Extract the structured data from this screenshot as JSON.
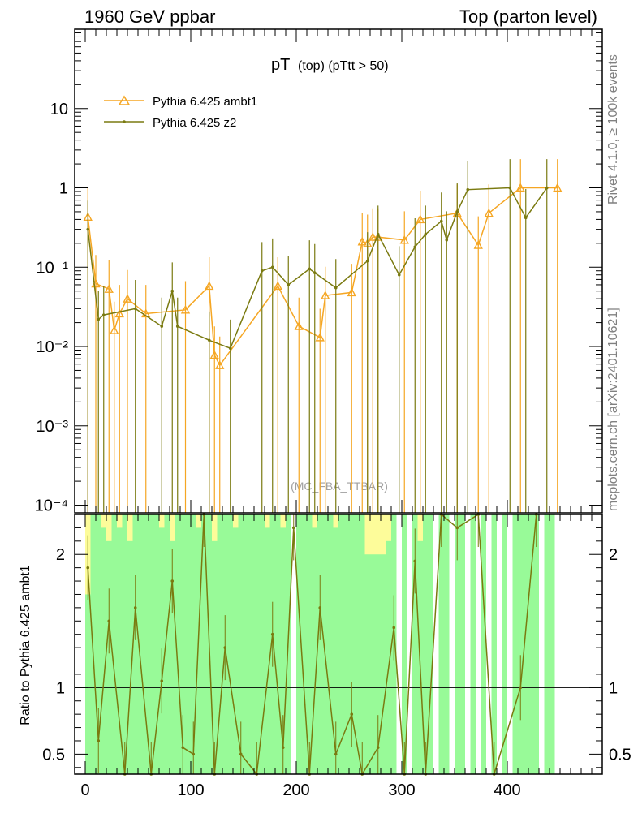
{
  "header": {
    "left": "1960 GeV ppbar",
    "right": "Top (parton level)"
  },
  "side_labels": {
    "rivet": "Rivet 4.1.0, ≥ 100k events",
    "mcplots": "mcplots.cern.ch [arXiv:2401.10621]"
  },
  "colors": {
    "ambt1": "#f5a623",
    "z2": "#7a7a10",
    "band_green": "#98fa98",
    "band_yellow": "#fdfc9a",
    "axis": "#000000",
    "side_text": "#808080"
  },
  "chart_data": {
    "type": "line",
    "title_main": "pT",
    "title_sub": "(top) (pTtt > 50)",
    "watermark": "(MC_FBA_TTBAR)",
    "ylabel_ratio": "Ratio to Pythia 6.425 ambt1",
    "xlim": [
      -10,
      490
    ],
    "ylim_main": [
      8e-05,
      100
    ],
    "ylim_ratio": [
      0.35,
      2.3
    ],
    "main_ytick_labels": [
      "10",
      "1",
      "10⁻¹",
      "10⁻²",
      "10⁻³",
      "10⁻⁴"
    ],
    "main_ytick_values": [
      10,
      1,
      0.1,
      0.01,
      0.001,
      0.0001
    ],
    "ratio_ytick_labels": [
      "2",
      "1",
      "0.5"
    ],
    "ratio_ytick_values": [
      2,
      1,
      0.5
    ],
    "xtick_labels": [
      "0",
      "100",
      "200",
      "300",
      "400"
    ],
    "xtick_values": [
      0,
      100,
      200,
      300,
      400
    ],
    "series": [
      {
        "name": "Pythia 6.425 ambt1",
        "key": "ambt1",
        "x": [
          2.5,
          10,
          22.5,
          27.5,
          32.5,
          40,
          57.5,
          95,
          117.5,
          122.5,
          127.5,
          182.5,
          202.5,
          222.5,
          227.5,
          252.5,
          262.5,
          267.5,
          272.5,
          277.5,
          302.5,
          317.5,
          352.5,
          372.5,
          382.5,
          412.5,
          447.5
        ],
        "y": [
          0.43,
          0.062,
          0.053,
          0.016,
          0.026,
          0.04,
          0.026,
          0.029,
          0.058,
          0.0078,
          0.0058,
          0.058,
          0.018,
          0.013,
          0.044,
          0.048,
          0.21,
          0.2,
          0.24,
          0.24,
          0.22,
          0.4,
          0.48,
          0.19,
          0.48,
          1.0,
          1.0
        ]
      },
      {
        "name": "Pythia 6.425 z2",
        "key": "z2",
        "x": [
          2.5,
          12.5,
          17.5,
          47.5,
          72.5,
          82.5,
          87.5,
          117.5,
          137.5,
          167.5,
          177.5,
          192.5,
          212.5,
          217.5,
          237.5,
          267.5,
          277.5,
          297.5,
          312.5,
          322.5,
          337.5,
          342.5,
          352.5,
          362.5,
          402.5,
          417.5,
          437.5
        ],
        "y": [
          0.3,
          0.022,
          0.025,
          0.03,
          0.018,
          0.05,
          0.018,
          0.012,
          0.0095,
          0.09,
          0.1,
          0.06,
          0.095,
          0.085,
          0.055,
          0.12,
          0.26,
          0.08,
          0.18,
          0.26,
          0.38,
          0.22,
          0.5,
          0.95,
          1.0,
          0.42,
          1.0
        ]
      }
    ],
    "ratio_line": {
      "name": "Pythia 6.425 z2 / ambt1",
      "x": [
        2.5,
        12.5,
        22.5,
        37.5,
        47.5,
        62.5,
        72.5,
        82.5,
        92.5,
        102.5,
        112.5,
        122.5,
        132.5,
        147.5,
        162.5,
        177.5,
        187.5,
        197.5,
        212.5,
        222.5,
        237.5,
        252.5,
        262.5,
        277.5,
        292.5,
        302.5,
        312.5,
        322.5,
        337.5,
        352.5,
        372.5,
        387.5,
        412.5,
        427.5
      ],
      "y": [
        1.9,
        0.6,
        1.5,
        0.35,
        1.6,
        0.35,
        1.05,
        1.8,
        0.55,
        0.5,
        2.3,
        0.35,
        1.3,
        0.5,
        0.35,
        1.4,
        0.55,
        2.2,
        0.35,
        1.6,
        0.5,
        0.8,
        0.35,
        0.55,
        1.45,
        0.35,
        1.95,
        0.35,
        2.3,
        2.2,
        2.3,
        0.35,
        1.0,
        2.3
      ]
    },
    "bands": {
      "bin_edges": [
        0,
        5,
        10,
        15,
        20,
        25,
        30,
        35,
        40,
        45,
        50,
        55,
        60,
        65,
        70,
        75,
        80,
        85,
        90,
        95,
        100,
        105,
        110,
        115,
        120,
        125,
        130,
        135,
        140,
        145,
        150,
        155,
        160,
        165,
        170,
        175,
        180,
        185,
        190,
        195,
        200,
        205,
        210,
        215,
        220,
        225,
        230,
        235,
        240,
        245,
        250,
        255,
        260,
        265,
        270,
        275,
        280,
        285,
        290,
        295,
        300,
        305,
        310,
        315,
        320,
        325,
        330,
        335,
        340,
        345,
        350,
        355,
        360,
        365,
        370,
        375,
        380,
        385,
        390,
        395,
        400,
        405,
        410,
        415,
        420,
        425,
        430,
        435,
        440,
        445,
        450
      ],
      "green_hi": [
        1.7,
        2.3,
        2.3,
        2.2,
        2.1,
        2.3,
        2.2,
        2.3,
        2.1,
        2.3,
        2.3,
        2.3,
        2.3,
        2.3,
        2.2,
        2.3,
        2.1,
        2.3,
        2.3,
        2.3,
        2.3,
        2.2,
        2.3,
        2.3,
        2.1,
        2.3,
        2.3,
        2.3,
        2.2,
        2.3,
        2.3,
        2.3,
        2.3,
        2.3,
        2.2,
        2.3,
        2.3,
        2.2,
        2.3,
        0,
        2.3,
        2.3,
        2.3,
        2.2,
        2.3,
        2.3,
        2.3,
        2.2,
        2.3,
        2.3,
        2.3,
        2.3,
        2.3,
        2.0,
        2.0,
        2.0,
        2.0,
        2.1,
        2.3,
        0,
        2.3,
        0,
        2.3,
        2.1,
        2.3,
        2.3,
        0,
        2.3,
        2.3,
        0,
        2.3,
        2.3,
        0,
        2.3,
        0,
        2.3,
        0,
        2.3,
        0,
        2.3,
        0,
        2.3,
        2.3,
        2.3,
        2.3,
        2.3,
        0,
        2.3,
        2.3,
        0
      ],
      "green_lo": [
        0.35,
        0.35,
        0.35,
        0.35,
        0.35,
        0.35,
        0.35,
        0.35,
        0.35,
        0.35,
        0.35,
        0.35,
        0.35,
        0.35,
        0.35,
        0.35,
        0.35,
        0.35,
        0.35,
        0.35,
        0.35,
        0.35,
        0.35,
        0.35,
        0.35,
        0.35,
        0.35,
        0.35,
        0.35,
        0.35,
        0.35,
        0.35,
        0.35,
        0.35,
        0.35,
        0.35,
        0.35,
        0.35,
        0.35,
        0.35,
        0.35,
        0.35,
        0.35,
        0.35,
        0.35,
        0.35,
        0.35,
        0.35,
        0.35,
        0.35,
        0.35,
        0.35,
        0.35,
        0.35,
        0.35,
        0.35,
        0.35,
        0.35,
        0.35,
        0.35,
        0.35,
        0.35,
        0.35,
        0.35,
        0.35,
        0.35,
        0.35,
        0.35,
        0.35,
        0.35,
        0.35,
        0.35,
        0.35,
        0.35,
        0.35,
        0.35,
        0.35,
        0.35,
        0.35,
        0.35,
        0.35,
        0.35,
        0.35,
        0.35,
        0.35,
        0.35,
        0.35,
        0.35,
        0.35,
        0.35
      ],
      "yellow_hi": [
        2.3,
        2.3,
        2.3,
        2.3,
        2.3,
        2.3,
        2.3,
        2.3,
        2.3,
        2.3,
        2.3,
        2.3,
        2.3,
        2.3,
        2.3,
        2.3,
        2.3,
        2.3,
        2.3,
        2.3,
        2.3,
        2.3,
        2.3,
        2.3,
        2.3,
        2.3,
        2.3,
        2.3,
        2.3,
        2.3,
        2.3,
        2.3,
        2.3,
        2.3,
        2.3,
        2.3,
        2.3,
        2.3,
        2.3,
        0,
        2.3,
        2.3,
        2.3,
        2.3,
        2.3,
        2.3,
        2.3,
        2.3,
        2.3,
        2.3,
        2.3,
        2.3,
        2.3,
        2.3,
        2.3,
        2.3,
        2.3,
        2.3,
        2.3,
        0,
        2.3,
        0,
        2.3,
        2.3,
        2.3,
        2.3,
        0,
        2.3,
        2.3,
        0,
        2.3,
        2.3,
        0,
        2.3,
        0,
        2.3,
        0,
        2.3,
        0,
        2.3,
        0,
        2.3,
        2.3,
        2.3,
        2.3,
        2.3,
        0,
        2.3,
        2.3,
        0
      ]
    }
  }
}
